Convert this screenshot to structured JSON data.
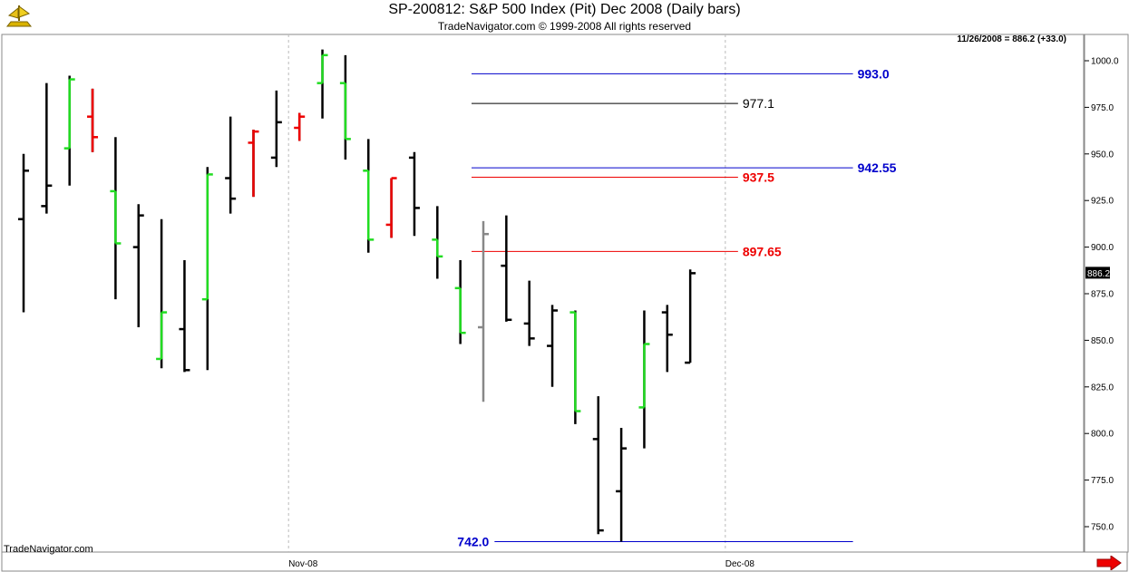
{
  "header": {
    "title": "SP-200812:  S&P 500 Index (Pit) Dec 2008  (Daily bars)",
    "subtitle": "TradeNavigator.com © 1999-2008 All rights reserved"
  },
  "watermark": "TradeNavigator.com",
  "colors": {
    "up": "#22dd22",
    "down": "#ee0000",
    "neutral": "#000000",
    "gray": "#888888",
    "blue": "#0000cc",
    "red": "#ee0000",
    "black": "#000000",
    "arrow": "#ee0000"
  },
  "chart_data": {
    "type": "ohlc",
    "readout": "11/26/2008 = 886.2 (+33.0)",
    "last_price_label": "886.2",
    "y_ticks": [
      "750.0",
      "775.0",
      "800.0",
      "825.0",
      "850.0",
      "875.0",
      "900.0",
      "925.0",
      "950.0",
      "975.0",
      "1000.0"
    ],
    "ylim": [
      738,
      1012
    ],
    "x_labels": [
      {
        "label": "Nov-08",
        "index": 12
      },
      {
        "label": "Dec-08",
        "index": 31
      }
    ],
    "bars": [
      {
        "o": 915,
        "h": 950,
        "l": 865,
        "c": 941,
        "color": "neutral"
      },
      {
        "o": 922,
        "h": 988,
        "l": 918,
        "c": 933,
        "color": "neutral"
      },
      {
        "o": 953,
        "h": 992,
        "l": 933,
        "c": 990,
        "color": "up"
      },
      {
        "o": 970,
        "h": 985,
        "l": 951,
        "c": 959,
        "color": "down"
      },
      {
        "o": 930,
        "h": 959,
        "l": 872,
        "c": 902,
        "color": "up"
      },
      {
        "o": 900,
        "h": 923,
        "l": 857,
        "c": 917,
        "color": "neutral"
      },
      {
        "o": 840,
        "h": 915,
        "l": 835,
        "c": 865,
        "color": "up"
      },
      {
        "o": 856,
        "h": 893,
        "l": 833,
        "c": 834,
        "color": "neutral"
      },
      {
        "o": 872,
        "h": 943,
        "l": 834,
        "c": 939,
        "color": "up"
      },
      {
        "o": 937,
        "h": 970,
        "l": 918,
        "c": 926,
        "color": "neutral"
      },
      {
        "o": 956,
        "h": 963,
        "l": 927,
        "c": 962,
        "color": "down"
      },
      {
        "o": 948,
        "h": 984,
        "l": 943,
        "c": 967,
        "color": "neutral"
      },
      {
        "o": 964,
        "h": 972,
        "l": 957,
        "c": 970,
        "color": "down"
      },
      {
        "o": 988,
        "h": 1006,
        "l": 969,
        "c": 1003,
        "color": "up"
      },
      {
        "o": 988,
        "h": 1003,
        "l": 947,
        "c": 958,
        "color": "up"
      },
      {
        "o": 941,
        "h": 958,
        "l": 897,
        "c": 904,
        "color": "up"
      },
      {
        "o": 912,
        "h": 937,
        "l": 905,
        "c": 937,
        "color": "down"
      },
      {
        "o": 948,
        "h": 951,
        "l": 906,
        "c": 921,
        "color": "neutral"
      },
      {
        "o": 904,
        "h": 922,
        "l": 883,
        "c": 895,
        "color": "up"
      },
      {
        "o": 878,
        "h": 893,
        "l": 848,
        "c": 854,
        "color": "up"
      },
      {
        "o": 857,
        "h": 914,
        "l": 817,
        "c": 907,
        "color": "gray"
      },
      {
        "o": 890,
        "h": 917,
        "l": 860,
        "c": 861,
        "color": "neutral"
      },
      {
        "o": 859,
        "h": 882,
        "l": 847,
        "c": 851,
        "color": "neutral"
      },
      {
        "o": 847,
        "h": 869,
        "l": 825,
        "c": 866,
        "color": "neutral"
      },
      {
        "o": 865,
        "h": 866,
        "l": 805,
        "c": 812,
        "color": "up"
      },
      {
        "o": 797,
        "h": 820,
        "l": 746,
        "c": 748,
        "color": "neutral"
      },
      {
        "o": 769,
        "h": 803,
        "l": 742,
        "c": 792,
        "color": "neutral"
      },
      {
        "o": 814,
        "h": 866,
        "l": 792,
        "c": 848,
        "color": "up"
      },
      {
        "o": 865,
        "h": 869,
        "l": 833,
        "c": 853,
        "color": "neutral"
      },
      {
        "o": 838,
        "h": 888,
        "l": 838,
        "c": 886,
        "color": "neutral"
      }
    ],
    "levels": [
      {
        "value": 993.0,
        "label": "993.0",
        "color": "blue",
        "from": 20,
        "to": 36,
        "label_side": "right",
        "bold": true
      },
      {
        "value": 977.1,
        "label": "977.1",
        "color": "black",
        "from": 20,
        "to": 31,
        "label_side": "right",
        "bold": false
      },
      {
        "value": 942.55,
        "label": "942.55",
        "color": "blue",
        "from": 20,
        "to": 36,
        "label_side": "right",
        "bold": true
      },
      {
        "value": 937.5,
        "label": "937.5",
        "color": "red",
        "from": 20,
        "to": 31,
        "label_side": "right",
        "bold": true
      },
      {
        "value": 897.65,
        "label": "897.65",
        "color": "red",
        "from": 20,
        "to": 31,
        "label_side": "right",
        "bold": true
      },
      {
        "value": 742.0,
        "label": "742.0",
        "color": "blue",
        "from": 21,
        "to": 36,
        "label_side": "left",
        "bold": true
      }
    ]
  }
}
